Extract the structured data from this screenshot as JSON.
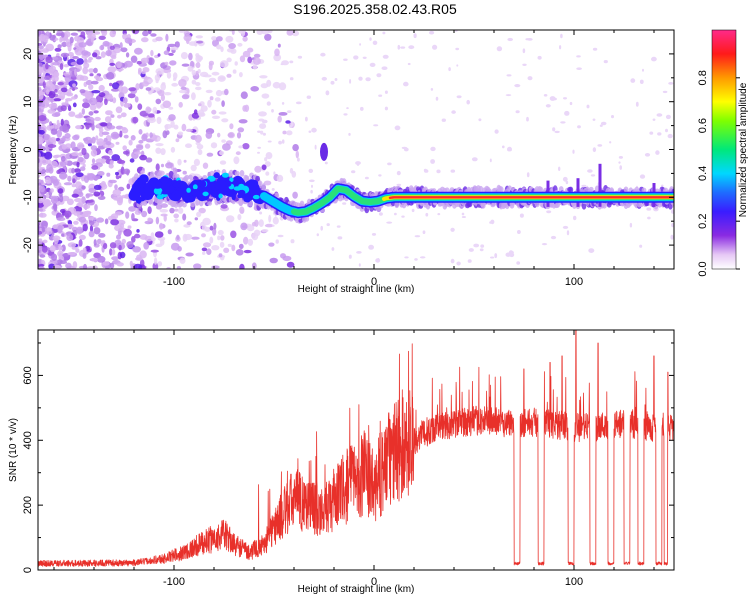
{
  "title": "S196.2025.358.02.43.R05",
  "colors": {
    "snr_line": "#e8302a",
    "ridge_core": "#ff2a2a",
    "frame": "#000000"
  },
  "chart_data": [
    {
      "type": "heatmap",
      "title": "S196.2025.358.02.43.R05",
      "xlabel": "Height of straight line (km)",
      "ylabel": "Frequency (Hz)",
      "xlim": [
        -168,
        150
      ],
      "ylim": [
        -25,
        25
      ],
      "xticks": [
        -100,
        0,
        100
      ],
      "xtick_labels": [
        "-100",
        "0",
        "100"
      ],
      "yticks": [
        -20,
        -10,
        0,
        10,
        20
      ],
      "ytick_labels": [
        "-20",
        "-10",
        "0",
        "10",
        "20"
      ],
      "colorbar": {
        "label": "Normalized spectral amplitude",
        "range": [
          0,
          1
        ],
        "ticks": [
          0.0,
          0.2,
          0.4,
          0.6,
          0.8
        ],
        "tick_labels": [
          "0.0",
          "0.2",
          "0.4",
          "0.6",
          "0.8"
        ],
        "colormap": "rainbow"
      },
      "ridge": {
        "x": [
          -118,
          -105,
          -95,
          -85,
          -75,
          -65,
          -58,
          -54,
          -50,
          -46,
          -42,
          -38,
          -34,
          -30,
          -26,
          -22,
          -18,
          -14,
          -10,
          -6,
          -2,
          2,
          6,
          10,
          20,
          40,
          60,
          80,
          100,
          120,
          140,
          150
        ],
        "freq": [
          -8.5,
          -8.0,
          -9.0,
          -8.5,
          -7.5,
          -8.0,
          -9.0,
          -10.0,
          -11.0,
          -12.0,
          -12.8,
          -13.2,
          -13.0,
          -12.2,
          -11.2,
          -10.0,
          -8.2,
          -8.5,
          -9.8,
          -10.8,
          -11.0,
          -10.8,
          -10.2,
          -10.0,
          -10.0,
          -10.0,
          -10.0,
          -10.0,
          -10.0,
          -10.0,
          -10.0,
          -10.0
        ]
      }
    },
    {
      "type": "line",
      "xlabel": "Height of straight line (km)",
      "ylabel": "SNR (10 * v/v)",
      "xlim": [
        -168,
        150
      ],
      "ylim": [
        0,
        740
      ],
      "xticks": [
        -100,
        0,
        100
      ],
      "xtick_labels": [
        "-100",
        "0",
        "100"
      ],
      "yticks": [
        0,
        200,
        400,
        600
      ],
      "ytick_labels": [
        "0",
        "200",
        "400",
        "600"
      ],
      "envelope": {
        "x": [
          -168,
          -120,
          -105,
          -95,
          -85,
          -75,
          -70,
          -62,
          -55,
          -48,
          -40,
          -32,
          -25,
          -18,
          -10,
          -5,
          0,
          5,
          10,
          15,
          20,
          25,
          30,
          40,
          50,
          60,
          65,
          70,
          80,
          90,
          100,
          110,
          120,
          130,
          140,
          150
        ],
        "y": [
          20,
          22,
          35,
          55,
          85,
          110,
          80,
          55,
          80,
          150,
          220,
          200,
          180,
          230,
          280,
          300,
          250,
          320,
          360,
          390,
          400,
          420,
          440,
          450,
          460,
          460,
          455,
          455,
          455,
          450,
          440,
          440,
          450,
          450,
          440,
          440
        ]
      },
      "dropouts": [
        {
          "from": 70,
          "to": 73
        },
        {
          "from": 82,
          "to": 85
        },
        {
          "from": 97,
          "to": 100
        },
        {
          "from": 108,
          "to": 111
        },
        {
          "from": 117,
          "to": 120
        },
        {
          "from": 125,
          "to": 128
        },
        {
          "from": 132,
          "to": 135
        },
        {
          "from": 141,
          "to": 144
        },
        {
          "from": 145,
          "to": 147
        }
      ],
      "spikes": [
        {
          "x": 101,
          "y": 740
        },
        {
          "x": 112,
          "y": 700
        },
        {
          "x": 88,
          "y": 640
        },
        {
          "x": 94,
          "y": 660
        },
        {
          "x": 140,
          "y": 660
        },
        {
          "x": 75,
          "y": 620
        },
        {
          "x": 147,
          "y": 610
        }
      ]
    }
  ]
}
